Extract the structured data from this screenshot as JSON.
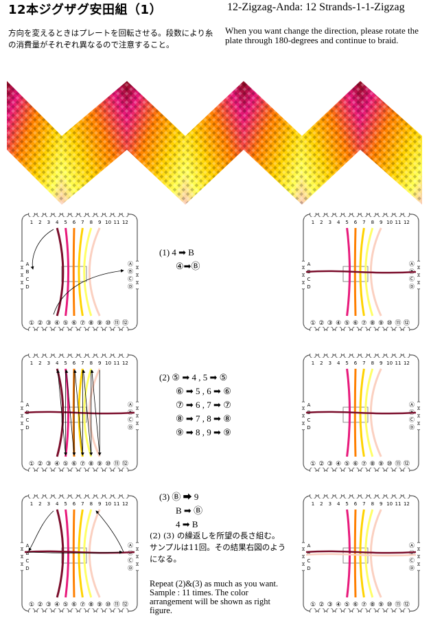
{
  "title": "12本ジグザグ安田組（1）",
  "title_en": "12-Zigzag-Anda: 12 Strands-1-1-Zigzag",
  "description_ja": "方向を変えるときはプレートを回転させる。段数により糸の消費量がそれぞれ異なるので注意すること。",
  "description_en": "When you want change the direction, please rotate the plate through 180-degrees and continue to braid.",
  "plate": {
    "top_numbers": [
      "1",
      "2",
      "3",
      "4",
      "5",
      "6",
      "7",
      "8",
      "9",
      "10",
      "11",
      "12"
    ],
    "bottom_numbers": [
      "①",
      "②",
      "③",
      "④",
      "⑤",
      "⑥",
      "⑦",
      "⑧",
      "⑨",
      "⑩",
      "⑪",
      "⑫"
    ],
    "left_letters": [
      "A",
      "B",
      "C",
      "D"
    ],
    "right_letters": [
      "Ⓐ",
      "Ⓑ",
      "Ⓒ",
      "Ⓓ"
    ]
  },
  "strand_colors": [
    "#7a0c2a",
    "#e8187a",
    "#ff7f00",
    "#ffd200",
    "#ffff66",
    "#fbd0c0"
  ],
  "steps": {
    "step1": [
      "(1)   4 ➡ B",
      "④➡Ⓑ"
    ],
    "step2": [
      "(2) ⑤ ➡ 4 , 5 ➡ ⑤",
      "⑥ ➡ 5 , 6 ➡ ⑥",
      "⑦ ➡ 6 , 7 ➡ ⑦",
      "⑧ ➡   7 , 8 ➡ ⑧",
      "⑨ ➡   8 , 9 ➡ ⑨"
    ],
    "step3": [
      "(3) Ⓑ ➡  9",
      "B ➡ Ⓑ",
      "4 ➡ B"
    ]
  },
  "note_ja": "(2) (3) の繰返しを所望の長さ組む。サンプルは11回。その結果右図のようになる。",
  "note_en": "Repeat (2)&(3) as much as you want. Sample : 11 times. The color arrangement will be shown as right figure."
}
